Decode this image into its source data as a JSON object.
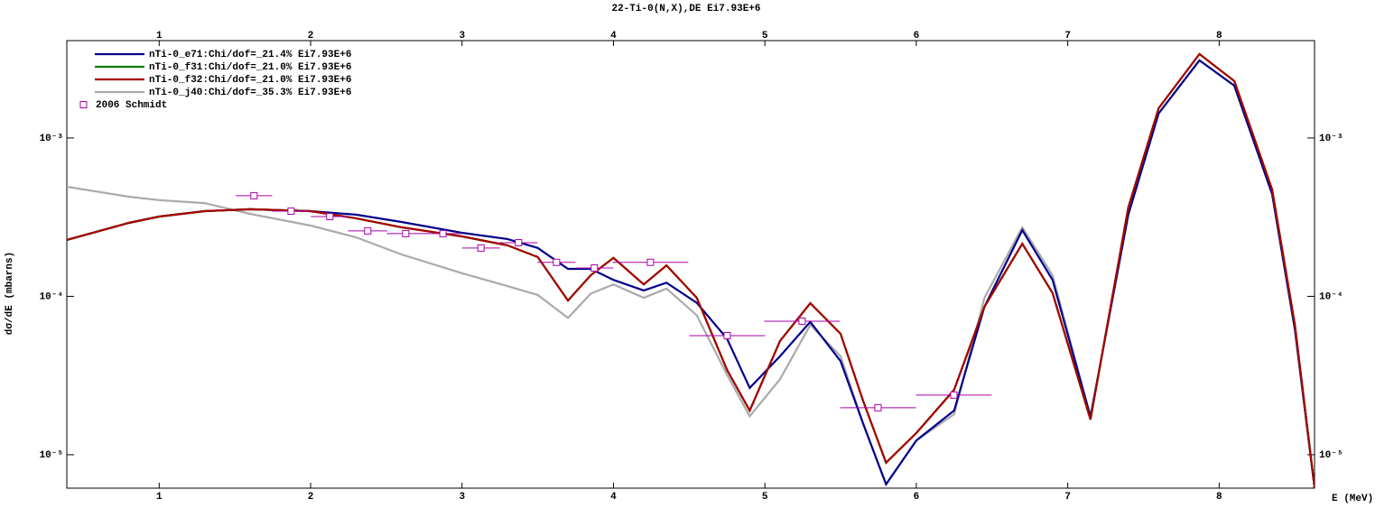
{
  "chart_data": {
    "type": "line",
    "title": "22-Ti-0(N,X),DE Ei7.93E+6",
    "xlabel": "E (MeV)",
    "ylabel": "dσ/dE (mbarns)",
    "log_y": true,
    "xlim": [
      0.39,
      8.63
    ],
    "ylim": [
      6.15e-06,
      0.00412
    ],
    "xticks": [
      1,
      2,
      3,
      4,
      5,
      6,
      7,
      8
    ],
    "yticks": [
      {
        "value": 1e-05,
        "label": "10⁻⁵"
      },
      {
        "value": 0.0001,
        "label": "10⁻⁴"
      },
      {
        "value": 0.001,
        "label": "10⁻³"
      }
    ],
    "legend": "upper left",
    "x": [
      0.39,
      0.8,
      1.0,
      1.3,
      1.6,
      2.0,
      2.3,
      2.6,
      3.0,
      3.3,
      3.5,
      3.7,
      3.85,
      4.0,
      4.2,
      4.35,
      4.55,
      4.75,
      4.9,
      5.1,
      5.3,
      5.5,
      5.65,
      5.8,
      6.0,
      6.25,
      6.45,
      6.7,
      6.9,
      7.15,
      7.4,
      7.6,
      7.87,
      8.1,
      8.35,
      8.5,
      8.63
    ],
    "series": [
      {
        "name": "nTi-0_e71:Chi/dof=_21.4% Ei7.93E+6",
        "color": "#00008b",
        "values": [
          0.000227,
          0.000291,
          0.000319,
          0.000345,
          0.000355,
          0.000345,
          0.000328,
          0.000295,
          0.000252,
          0.00023,
          0.000202,
          0.000149,
          0.000149,
          0.000127,
          0.000109,
          0.000122,
          9.1e-05,
          5.4e-05,
          2.64e-05,
          4.19e-05,
          6.9e-05,
          3.9e-05,
          1.56e-05,
          6.5e-06,
          1.23e-05,
          1.9e-05,
          8.6e-05,
          0.000262,
          0.000127,
          1.74e-05,
          0.000328,
          0.00143,
          0.00309,
          0.00214,
          0.000443,
          6.2e-05,
          6.2e-06
        ]
      },
      {
        "name": "nTi-0_f31:Chi/dof=_21.0% Ei7.93E+6",
        "color": "#008000",
        "values": [
          0.000227,
          0.000291,
          0.000319,
          0.000345,
          0.000355,
          0.000345,
          0.000311,
          0.000273,
          0.000239,
          0.00021,
          0.000177,
          9.4e-05,
          0.000136,
          0.000175,
          0.000119,
          0.000157,
          9.8e-05,
          3.43e-05,
          1.9e-05,
          5.23e-05,
          9.06e-05,
          5.81e-05,
          2.17e-05,
          8.9e-06,
          1.37e-05,
          2.57e-05,
          8.6e-05,
          0.000215,
          0.000105,
          1.67e-05,
          0.000364,
          0.00154,
          0.00339,
          0.00229,
          0.000473,
          6.62e-05,
          6.2e-06
        ]
      },
      {
        "name": "nTi-0_f32:Chi/dof=_21.0% Ei7.93E+6",
        "color": "#aa0000",
        "values": [
          0.000227,
          0.000291,
          0.000319,
          0.000345,
          0.000355,
          0.000345,
          0.000311,
          0.000273,
          0.000239,
          0.00021,
          0.000177,
          9.4e-05,
          0.000136,
          0.000175,
          0.000119,
          0.000157,
          9.8e-05,
          3.43e-05,
          1.9e-05,
          5.23e-05,
          9.06e-05,
          5.81e-05,
          2.17e-05,
          8.9e-06,
          1.37e-05,
          2.57e-05,
          8.6e-05,
          0.000215,
          0.000105,
          1.67e-05,
          0.000364,
          0.00154,
          0.00339,
          0.00229,
          0.000473,
          6.62e-05,
          6.2e-06
        ]
      },
      {
        "name": "nTi-0_j40:Chi/dof=_35.3% Ei7.93E+6",
        "color": "#aaaaaa",
        "values": [
          0.000492,
          0.000426,
          0.000405,
          0.000388,
          0.000332,
          0.00028,
          0.000236,
          0.000184,
          0.00014,
          0.000116,
          0.000102,
          7.3e-05,
          0.000104,
          0.000119,
          9.8e-05,
          0.000112,
          7.6e-05,
          3.2e-05,
          1.75e-05,
          3e-05,
          6.6e-05,
          4.19e-05,
          1.56e-05,
          6.5e-06,
          1.23e-05,
          1.8e-05,
          9.8e-05,
          0.000273,
          0.000136,
          1.74e-05,
          0.000328,
          0.00143,
          0.00309,
          0.00214,
          0.000443,
          6.2e-05,
          6.2e-06
        ]
      },
      {
        "name": "2006 Schmidt",
        "color": "#aa00aa",
        "type": "scatter",
        "x": [
          1.626,
          1.871,
          2.127,
          2.377,
          2.628,
          2.874,
          3.125,
          3.373,
          3.624,
          3.874,
          4.244,
          4.751,
          5.246,
          5.747,
          6.248
        ],
        "xerr": [
          0.12,
          0.125,
          0.125,
          0.13,
          0.125,
          0.125,
          0.125,
          0.125,
          0.125,
          0.125,
          0.25,
          0.25,
          0.25,
          0.25,
          0.25
        ],
        "values": [
          0.000432,
          0.000345,
          0.000319,
          0.000259,
          0.000249,
          0.000249,
          0.000202,
          0.000218,
          0.000164,
          0.000151,
          0.000164,
          5.65e-05,
          6.97e-05,
          1.98e-05,
          2.38e-05
        ]
      }
    ]
  }
}
